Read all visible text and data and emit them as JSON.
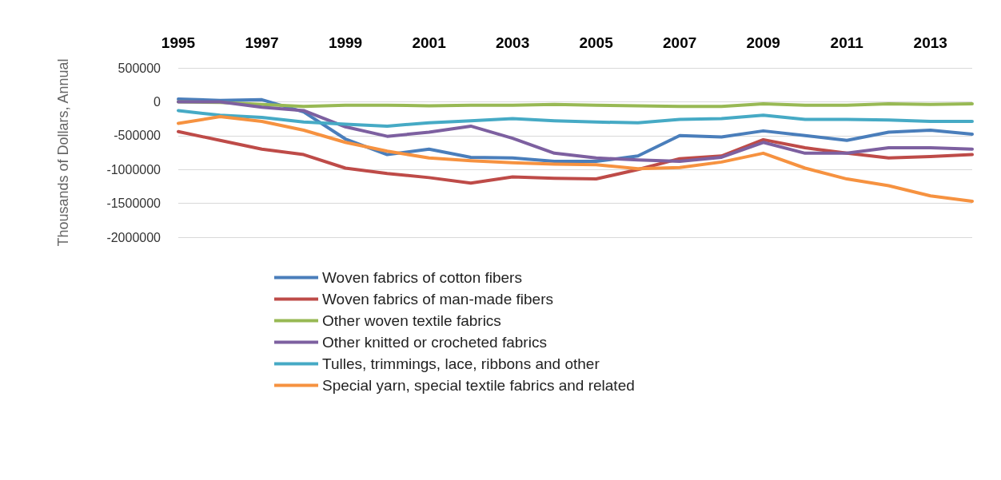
{
  "chart_data": {
    "type": "line",
    "ylabel": "Thousands of Dollars, Annual",
    "categories": [
      "1995",
      null,
      "1997",
      null,
      "1999",
      null,
      "2001",
      null,
      "2003",
      null,
      "2005",
      null,
      "2007",
      null,
      "2009",
      null,
      "2011",
      null,
      "2013",
      null
    ],
    "ylim": [
      -2000000,
      500000
    ],
    "yticks": [
      -2000000,
      -1500000,
      -1000000,
      -500000,
      0,
      500000
    ],
    "grid": "y",
    "legend": "bottom",
    "marker": "none",
    "line_style": "solid",
    "series": [
      {
        "name": "Woven fabrics of cotton fibers",
        "color": "#4a7ebb",
        "values": [
          40000,
          20000,
          30000,
          -150000,
          -550000,
          -780000,
          -700000,
          -820000,
          -830000,
          -880000,
          -880000,
          -800000,
          -500000,
          -520000,
          -430000,
          -500000,
          -570000,
          -450000,
          -420000,
          -480000
        ]
      },
      {
        "name": "Woven fabrics of man-made fibers",
        "color": "#be4b48",
        "values": [
          -440000,
          -570000,
          -700000,
          -780000,
          -980000,
          -1060000,
          -1120000,
          -1200000,
          -1110000,
          -1130000,
          -1140000,
          -1000000,
          -840000,
          -800000,
          -560000,
          -680000,
          -760000,
          -830000,
          -810000,
          -780000
        ]
      },
      {
        "name": "Other woven textile fabrics",
        "color": "#98b954",
        "values": [
          0,
          -10000,
          -40000,
          -70000,
          -50000,
          -50000,
          -60000,
          -50000,
          -50000,
          -40000,
          -50000,
          -60000,
          -70000,
          -70000,
          -30000,
          -50000,
          -50000,
          -30000,
          -40000,
          -30000
        ]
      },
      {
        "name": "Other knitted or crocheted fabrics",
        "color": "#7d60a0",
        "values": [
          0,
          0,
          -80000,
          -130000,
          -370000,
          -510000,
          -450000,
          -360000,
          -540000,
          -760000,
          -830000,
          -860000,
          -880000,
          -820000,
          -600000,
          -760000,
          -760000,
          -680000,
          -680000,
          -700000
        ]
      },
      {
        "name": "Tulles, trimmings, lace, ribbons and other",
        "color": "#46aac5",
        "values": [
          -130000,
          -200000,
          -230000,
          -300000,
          -330000,
          -360000,
          -310000,
          -280000,
          -250000,
          -280000,
          -300000,
          -310000,
          -260000,
          -250000,
          -200000,
          -260000,
          -260000,
          -270000,
          -290000,
          -290000
        ]
      },
      {
        "name": "Special yarn, special textile fabrics and related",
        "color": "#f69240",
        "values": [
          -320000,
          -220000,
          -290000,
          -420000,
          -600000,
          -730000,
          -830000,
          -870000,
          -900000,
          -920000,
          -930000,
          -990000,
          -970000,
          -890000,
          -760000,
          -980000,
          -1140000,
          -1240000,
          -1390000,
          -1470000
        ]
      }
    ]
  }
}
